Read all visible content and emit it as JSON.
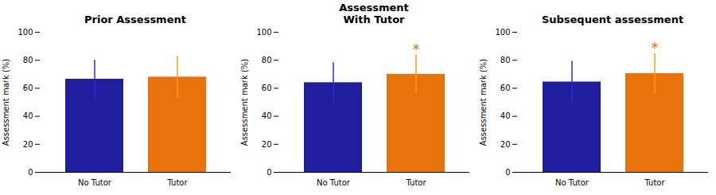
{
  "chart_data": [
    {
      "type": "bar",
      "title": "Prior Assessment",
      "categories": [
        "No Tutor",
        "Tutor"
      ],
      "values": [
        66.5,
        68.0
      ],
      "errors": [
        13.5,
        14.5
      ],
      "colors": [
        "#1f1f9e",
        "#e8720c"
      ],
      "ylabel": "Assessment mark (%)",
      "ylim": [
        0,
        100
      ],
      "yticks": [
        0,
        20,
        40,
        60,
        80,
        100
      ],
      "grid": false
    },
    {
      "type": "bar",
      "title": "Assessment\nWith Tutor",
      "categories": [
        "No Tutor",
        "Tutor"
      ],
      "values": [
        64.0,
        70.0
      ],
      "errors": [
        14.0,
        13.5
      ],
      "colors": [
        "#1f1f9e",
        "#e8720c"
      ],
      "ylabel": "Assessment mark (%)",
      "ylim": [
        0,
        100
      ],
      "yticks": [
        0,
        20,
        40,
        60,
        80,
        100
      ],
      "grid": false,
      "annotations": [
        {
          "text": "*",
          "category": "Tutor",
          "color": "#e07000"
        }
      ]
    },
    {
      "type": "bar",
      "title": "Subsequent assessment",
      "categories": [
        "No Tutor",
        "Tutor"
      ],
      "values": [
        64.5,
        70.5
      ],
      "errors": [
        14.5,
        14.0
      ],
      "colors": [
        "#1f1f9e",
        "#e8720c"
      ],
      "ylabel": "Assessment mark (%)",
      "ylim": [
        0,
        100
      ],
      "yticks": [
        0,
        20,
        40,
        60,
        80,
        100
      ],
      "grid": false,
      "annotations": [
        {
          "text": "*",
          "category": "Tutor",
          "color": "#e07000"
        }
      ]
    }
  ]
}
